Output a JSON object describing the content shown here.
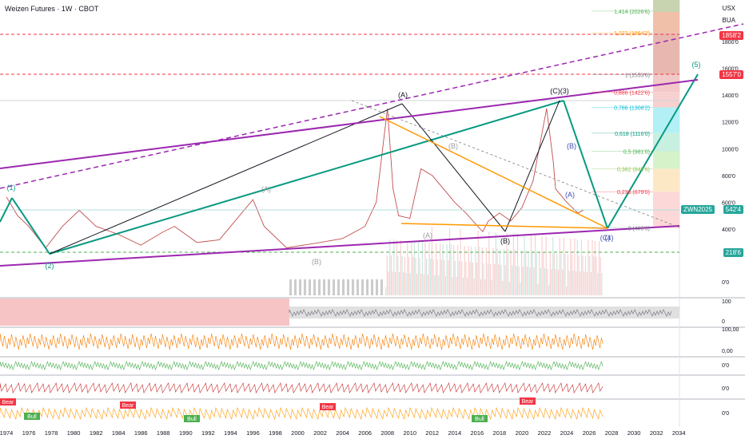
{
  "header": {
    "title": "Weizen Futures · 1W · CBOT",
    "currency": "USX",
    "unit": "BUA"
  },
  "tags": {
    "top_red": "1858'2",
    "mid_red": "1557'0",
    "ticker": "ZWN2025",
    "price": "542'4",
    "low_green": "218'6"
  },
  "chart_data": {
    "type": "line",
    "title": "Weizen Futures · 1W · CBOT",
    "x_ticks": [
      "1974",
      "1976",
      "1978",
      "1980",
      "1982",
      "1984",
      "1986",
      "1988",
      "1990",
      "1992",
      "1994",
      "1996",
      "1998",
      "2000",
      "2002",
      "2004",
      "2006",
      "2008",
      "2010",
      "2012",
      "2014",
      "2016",
      "2018",
      "2020",
      "2022",
      "2024",
      "2026",
      "2028",
      "2030",
      "2032",
      "2034"
    ],
    "y_ticks": [
      "1800'0",
      "1600'0",
      "1400'0",
      "1200'0",
      "1000'0",
      "800'0",
      "600'0",
      "400'0"
    ],
    "volume_label": "0'0",
    "fib_levels": [
      {
        "label": "1,414 (2026'6)",
        "value": 2026.75,
        "color": "#4caf50"
      },
      {
        "label": "1,272 (1864'2)",
        "value": 1864.25,
        "color": "#ff9800"
      },
      {
        "label": "1 (1553'0)",
        "value": 1553,
        "color": "#787b86"
      },
      {
        "label": "0,886 (1422'6)",
        "value": 1422.75,
        "color": "#f23645"
      },
      {
        "label": "0,786 (1308'2)",
        "value": 1308.25,
        "color": "#00bcd4"
      },
      {
        "label": "0,618 (1116'0)",
        "value": 1116,
        "color": "#089981"
      },
      {
        "label": "0,5 (981'0)",
        "value": 981,
        "color": "#4caf50"
      },
      {
        "label": "0,382 (848'6)",
        "value": 848.75,
        "color": "#8bc34a"
      },
      {
        "label": "0,236 (679'0)",
        "value": 679,
        "color": "#f23645"
      },
      {
        "label": "0 (409'0)",
        "value": 409,
        "color": "#787b86"
      }
    ],
    "wave_labels": [
      "(1)",
      "(2)",
      "(A)",
      "(B)",
      "(A)",
      "(B)",
      "(A)",
      "(B)",
      "(C)(3)",
      "(B)",
      "(A)",
      "(C)",
      "(4)",
      "(5)"
    ],
    "price_series": {
      "name": "ZWN2025",
      "last": 542.5
    },
    "osc_ticks": {
      "rsi": [
        "100",
        "0"
      ],
      "stoch": [
        "100,00",
        "0,00"
      ],
      "macd": "0'0",
      "cci": "0'0",
      "ao": "0'0"
    },
    "signals": {
      "bear": "Bear",
      "bull": "Bull"
    }
  }
}
